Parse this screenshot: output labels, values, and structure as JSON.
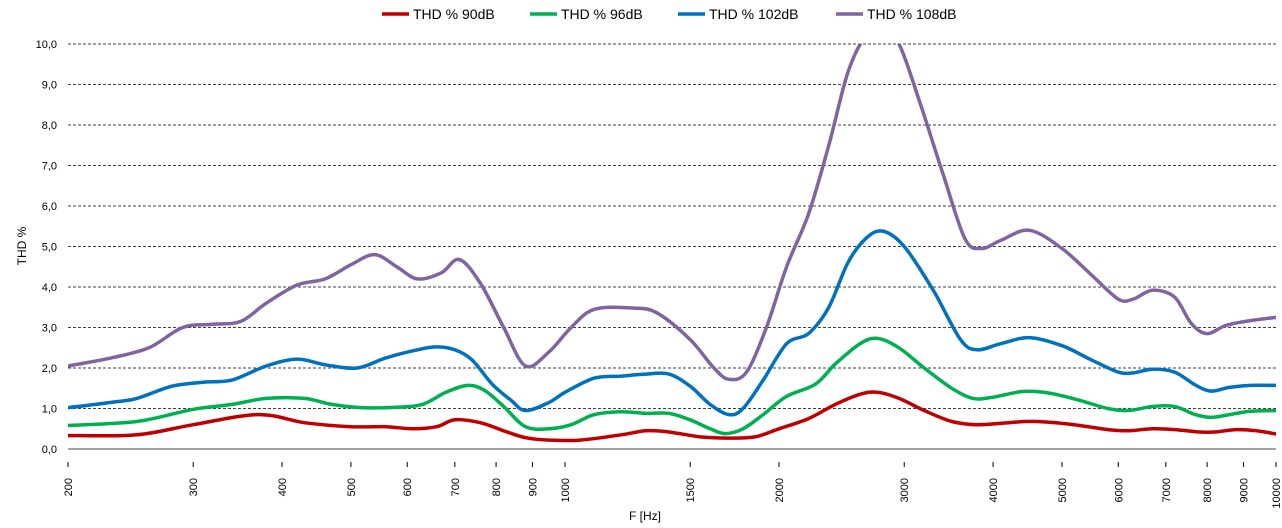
{
  "chart_data": {
    "type": "line",
    "title": "",
    "xlabel": "F [Hz]",
    "ylabel": "THD %",
    "x_scale": "log",
    "xlim": [
      200,
      10000
    ],
    "ylim": [
      0,
      10
    ],
    "grid": "horizontal dashed",
    "legend_position": "top",
    "y_ticks": [
      "0,0",
      "1,0",
      "2,0",
      "3,0",
      "4,0",
      "5,0",
      "6,0",
      "7,0",
      "8,0",
      "9,0",
      "10,0"
    ],
    "x_ticks": [
      200,
      300,
      400,
      500,
      600,
      700,
      800,
      900,
      1000,
      1500,
      2000,
      3000,
      4000,
      5000,
      6000,
      7000,
      8000,
      9000,
      10000
    ],
    "series": [
      {
        "name": "THD % 90dB",
        "color": "#c00000",
        "points": [
          [
            200,
            0.33
          ],
          [
            250,
            0.35
          ],
          [
            300,
            0.6
          ],
          [
            370,
            0.85
          ],
          [
            430,
            0.65
          ],
          [
            500,
            0.55
          ],
          [
            560,
            0.55
          ],
          [
            610,
            0.5
          ],
          [
            660,
            0.55
          ],
          [
            700,
            0.72
          ],
          [
            760,
            0.65
          ],
          [
            820,
            0.45
          ],
          [
            880,
            0.28
          ],
          [
            950,
            0.22
          ],
          [
            1050,
            0.22
          ],
          [
            1200,
            0.35
          ],
          [
            1300,
            0.45
          ],
          [
            1400,
            0.42
          ],
          [
            1550,
            0.3
          ],
          [
            1700,
            0.27
          ],
          [
            1850,
            0.3
          ],
          [
            2000,
            0.5
          ],
          [
            2200,
            0.75
          ],
          [
            2400,
            1.1
          ],
          [
            2600,
            1.35
          ],
          [
            2750,
            1.4
          ],
          [
            2950,
            1.25
          ],
          [
            3200,
            0.95
          ],
          [
            3500,
            0.68
          ],
          [
            3800,
            0.6
          ],
          [
            4200,
            0.65
          ],
          [
            4600,
            0.68
          ],
          [
            5200,
            0.6
          ],
          [
            5800,
            0.48
          ],
          [
            6200,
            0.45
          ],
          [
            6700,
            0.5
          ],
          [
            7200,
            0.48
          ],
          [
            7800,
            0.42
          ],
          [
            8200,
            0.42
          ],
          [
            8800,
            0.48
          ],
          [
            9400,
            0.45
          ],
          [
            10000,
            0.37
          ]
        ]
      },
      {
        "name": "THD % 96dB",
        "color": "#00b050",
        "points": [
          [
            200,
            0.58
          ],
          [
            250,
            0.68
          ],
          [
            300,
            0.98
          ],
          [
            340,
            1.1
          ],
          [
            380,
            1.25
          ],
          [
            430,
            1.25
          ],
          [
            470,
            1.1
          ],
          [
            520,
            1.02
          ],
          [
            580,
            1.03
          ],
          [
            630,
            1.1
          ],
          [
            680,
            1.4
          ],
          [
            730,
            1.57
          ],
          [
            770,
            1.45
          ],
          [
            820,
            1.05
          ],
          [
            880,
            0.55
          ],
          [
            950,
            0.5
          ],
          [
            1020,
            0.6
          ],
          [
            1100,
            0.85
          ],
          [
            1200,
            0.92
          ],
          [
            1300,
            0.88
          ],
          [
            1400,
            0.88
          ],
          [
            1500,
            0.72
          ],
          [
            1600,
            0.5
          ],
          [
            1680,
            0.38
          ],
          [
            1780,
            0.5
          ],
          [
            1900,
            0.85
          ],
          [
            2050,
            1.3
          ],
          [
            2250,
            1.6
          ],
          [
            2400,
            2.1
          ],
          [
            2600,
            2.6
          ],
          [
            2750,
            2.73
          ],
          [
            2950,
            2.5
          ],
          [
            3200,
            2.0
          ],
          [
            3500,
            1.5
          ],
          [
            3750,
            1.25
          ],
          [
            4000,
            1.28
          ],
          [
            4400,
            1.42
          ],
          [
            4800,
            1.38
          ],
          [
            5300,
            1.2
          ],
          [
            5800,
            1.0
          ],
          [
            6200,
            0.95
          ],
          [
            6700,
            1.05
          ],
          [
            7200,
            1.05
          ],
          [
            7700,
            0.85
          ],
          [
            8100,
            0.78
          ],
          [
            8600,
            0.85
          ],
          [
            9200,
            0.93
          ],
          [
            10000,
            0.95
          ]
        ]
      },
      {
        "name": "THD % 102dB",
        "color": "#0070c0",
        "points": [
          [
            200,
            1.02
          ],
          [
            230,
            1.15
          ],
          [
            250,
            1.25
          ],
          [
            280,
            1.55
          ],
          [
            310,
            1.65
          ],
          [
            340,
            1.7
          ],
          [
            380,
            2.05
          ],
          [
            420,
            2.22
          ],
          [
            460,
            2.08
          ],
          [
            510,
            2.0
          ],
          [
            560,
            2.25
          ],
          [
            620,
            2.45
          ],
          [
            660,
            2.52
          ],
          [
            700,
            2.45
          ],
          [
            740,
            2.2
          ],
          [
            790,
            1.6
          ],
          [
            840,
            1.2
          ],
          [
            880,
            0.95
          ],
          [
            950,
            1.15
          ],
          [
            1000,
            1.4
          ],
          [
            1100,
            1.75
          ],
          [
            1200,
            1.8
          ],
          [
            1300,
            1.85
          ],
          [
            1400,
            1.85
          ],
          [
            1500,
            1.55
          ],
          [
            1600,
            1.1
          ],
          [
            1700,
            0.85
          ],
          [
            1780,
            1.0
          ],
          [
            1900,
            1.7
          ],
          [
            2050,
            2.6
          ],
          [
            2200,
            2.85
          ],
          [
            2350,
            3.5
          ],
          [
            2500,
            4.6
          ],
          [
            2650,
            5.2
          ],
          [
            2800,
            5.38
          ],
          [
            3000,
            5.0
          ],
          [
            3300,
            3.9
          ],
          [
            3600,
            2.7
          ],
          [
            3800,
            2.45
          ],
          [
            4100,
            2.6
          ],
          [
            4500,
            2.75
          ],
          [
            5000,
            2.55
          ],
          [
            5500,
            2.2
          ],
          [
            6000,
            1.9
          ],
          [
            6300,
            1.88
          ],
          [
            6700,
            1.97
          ],
          [
            7200,
            1.9
          ],
          [
            7700,
            1.58
          ],
          [
            8100,
            1.43
          ],
          [
            8600,
            1.52
          ],
          [
            9200,
            1.57
          ],
          [
            10000,
            1.57
          ]
        ]
      },
      {
        "name": "THD % 108dB",
        "color": "#8064a2",
        "points": [
          [
            200,
            2.05
          ],
          [
            230,
            2.25
          ],
          [
            260,
            2.5
          ],
          [
            290,
            3.0
          ],
          [
            320,
            3.08
          ],
          [
            350,
            3.15
          ],
          [
            380,
            3.6
          ],
          [
            420,
            4.05
          ],
          [
            460,
            4.2
          ],
          [
            500,
            4.55
          ],
          [
            540,
            4.8
          ],
          [
            580,
            4.5
          ],
          [
            620,
            4.2
          ],
          [
            670,
            4.35
          ],
          [
            710,
            4.68
          ],
          [
            760,
            4.1
          ],
          [
            820,
            3.0
          ],
          [
            880,
            2.05
          ],
          [
            950,
            2.4
          ],
          [
            1020,
            3.0
          ],
          [
            1100,
            3.45
          ],
          [
            1250,
            3.48
          ],
          [
            1350,
            3.35
          ],
          [
            1500,
            2.7
          ],
          [
            1620,
            2.0
          ],
          [
            1700,
            1.72
          ],
          [
            1800,
            1.9
          ],
          [
            1920,
            3.0
          ],
          [
            2050,
            4.5
          ],
          [
            2200,
            5.8
          ],
          [
            2350,
            7.5
          ],
          [
            2500,
            9.3
          ],
          [
            2650,
            10.2
          ],
          [
            2800,
            10.35
          ],
          [
            2950,
            10.0
          ],
          [
            3150,
            8.6
          ],
          [
            3400,
            6.8
          ],
          [
            3650,
            5.2
          ],
          [
            3850,
            4.95
          ],
          [
            4100,
            5.15
          ],
          [
            4500,
            5.4
          ],
          [
            5000,
            4.95
          ],
          [
            5500,
            4.3
          ],
          [
            6000,
            3.7
          ],
          [
            6300,
            3.7
          ],
          [
            6700,
            3.92
          ],
          [
            7200,
            3.75
          ],
          [
            7600,
            3.1
          ],
          [
            8000,
            2.85
          ],
          [
            8500,
            3.05
          ],
          [
            9200,
            3.17
          ],
          [
            10000,
            3.25
          ]
        ]
      }
    ]
  }
}
